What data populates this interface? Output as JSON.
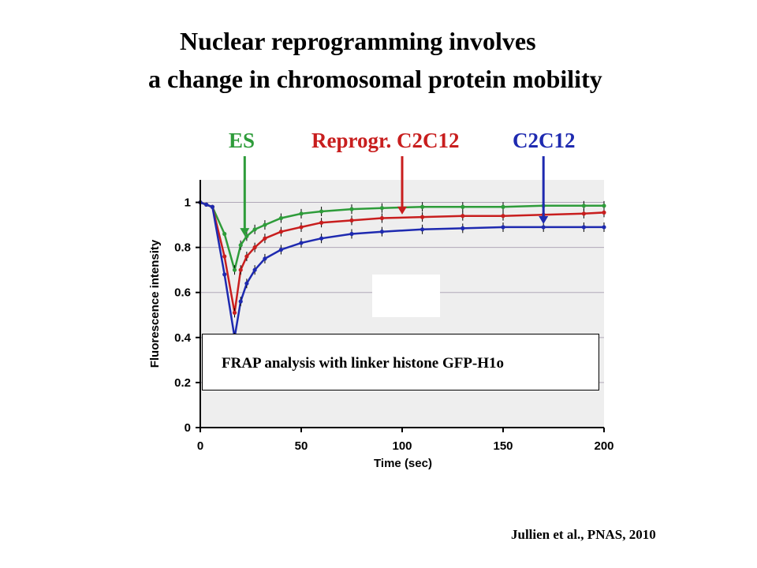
{
  "slide": {
    "title_line1": "Nuclear reprogramming involves",
    "title_line2": "a change in chromosomal protein mobility",
    "overlay_text": "FRAP analysis with linker histone GFP-H1o",
    "citation": "Jullien et al., PNAS, 2010"
  },
  "colors": {
    "es": "#2e9c3a",
    "reprogrammed": "#c81e1e",
    "c2c12": "#1e2ab0",
    "plot_bg": "#eeeeee",
    "grid": "#b0a8b8"
  },
  "chart_data": {
    "type": "line",
    "xlabel": "Time (sec)",
    "ylabel": "Fluorescence intensity",
    "xlim": [
      0,
      200
    ],
    "ylim": [
      0,
      1.1
    ],
    "xticks": [
      "0",
      "50",
      "100",
      "150",
      "200"
    ],
    "yticks": [
      "0",
      "0.2",
      "0.4",
      "0.6",
      "0.8",
      "1"
    ],
    "grid": true,
    "legend_position": "top (arrow labels)",
    "series": [
      {
        "name": "ES",
        "color_key": "es",
        "arrow_x": 22,
        "x": [
          0,
          3,
          6,
          12,
          17,
          20,
          23,
          27,
          32,
          40,
          50,
          60,
          75,
          90,
          110,
          130,
          150,
          170,
          190,
          200
        ],
        "y": [
          1.0,
          0.99,
          0.98,
          0.86,
          0.7,
          0.81,
          0.85,
          0.88,
          0.9,
          0.93,
          0.95,
          0.96,
          0.97,
          0.975,
          0.98,
          0.98,
          0.98,
          0.985,
          0.985,
          0.985
        ]
      },
      {
        "name": "Reprogr. C2C12",
        "color_key": "reprogrammed",
        "arrow_x": 100,
        "x": [
          0,
          3,
          6,
          12,
          17,
          20,
          23,
          27,
          32,
          40,
          50,
          60,
          75,
          90,
          110,
          130,
          150,
          170,
          190,
          200
        ],
        "y": [
          1.0,
          0.99,
          0.98,
          0.76,
          0.51,
          0.7,
          0.76,
          0.8,
          0.84,
          0.87,
          0.89,
          0.91,
          0.92,
          0.93,
          0.935,
          0.94,
          0.94,
          0.945,
          0.95,
          0.955
        ]
      },
      {
        "name": "C2C12",
        "color_key": "c2c12",
        "arrow_x": 170,
        "x": [
          0,
          3,
          6,
          12,
          17,
          20,
          23,
          27,
          32,
          40,
          50,
          60,
          75,
          90,
          110,
          130,
          150,
          170,
          190,
          200
        ],
        "y": [
          1.0,
          0.99,
          0.98,
          0.68,
          0.4,
          0.56,
          0.64,
          0.7,
          0.75,
          0.79,
          0.82,
          0.84,
          0.86,
          0.87,
          0.88,
          0.885,
          0.89,
          0.89,
          0.89,
          0.89
        ]
      }
    ]
  }
}
